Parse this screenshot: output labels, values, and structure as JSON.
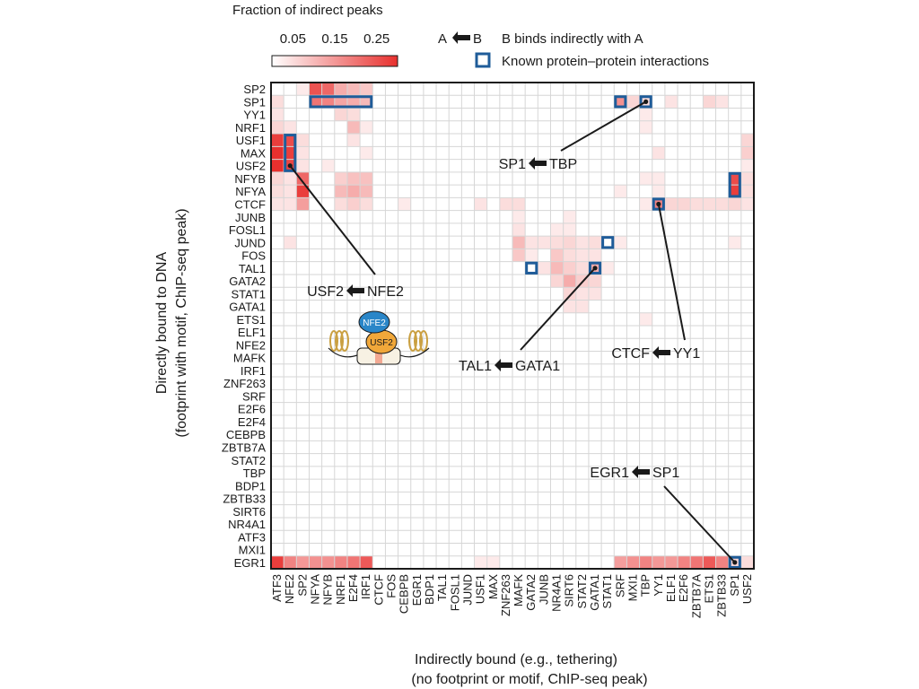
{
  "chart_data": {
    "type": "heatmap",
    "colorbar": {
      "title": "Fraction of indirect peaks",
      "ticks": [
        "0.05",
        "0.15",
        "0.25"
      ],
      "range": [
        0,
        0.3
      ],
      "low_color": "#ffffff",
      "high_color": "#e8302e"
    },
    "legend": {
      "arrow_a": "A",
      "arrow_b": "B",
      "arrow_text": "B binds indirectly with A",
      "box_text": "Known protein–protein interactions",
      "box_color": "#1f5c99"
    },
    "ylabel_line1": "Directly bound to DNA",
    "ylabel_line2": "(footprint with motif, ChIP-seq peak)",
    "xlabel_line1": "Indirectly bound (e.g., tethering)",
    "xlabel_line2": "(no footprint or motif, ChIP-seq peak)",
    "rows": [
      "SP2",
      "SP1",
      "YY1",
      "NRF1",
      "USF1",
      "MAX",
      "USF2",
      "NFYB",
      "NFYA",
      "CTCF",
      "JUNB",
      "FOSL1",
      "JUND",
      "FOS",
      "TAL1",
      "GATA2",
      "STAT1",
      "GATA1",
      "ETS1",
      "ELF1",
      "NFE2",
      "MAFK",
      "IRF1",
      "ZNF263",
      "SRF",
      "E2F6",
      "E2F4",
      "CEBPB",
      "ZBTB7A",
      "STAT2",
      "TBP",
      "BDP1",
      "ZBTB33",
      "SIRT6",
      "NR4A1",
      "ATF3",
      "MXI1",
      "EGR1"
    ],
    "columns": [
      "ATF3",
      "NFE2",
      "SP2",
      "NFYA",
      "NFYB",
      "NRF1",
      "E2F4",
      "IRF1",
      "CTCF",
      "FOS",
      "CEBPB",
      "EGR1",
      "BDP1",
      "TAL1",
      "FOSL1",
      "JUND",
      "USF1",
      "MAX",
      "ZNF263",
      "MAFK",
      "GATA2",
      "JUNB",
      "NR4A1",
      "SIRT6",
      "STAT2",
      "GATA1",
      "STAT1",
      "SRF",
      "MXI1",
      "TBP",
      "YY1",
      "ELF1",
      "E2F6",
      "ZBTB7A",
      "ETS1",
      "ZBTB33",
      "SP1",
      "USF2"
    ],
    "cells": [
      {
        "row": "SP2",
        "col": "NFYA",
        "value": 0.25
      },
      {
        "row": "SP2",
        "col": "NFYB",
        "value": 0.22
      },
      {
        "row": "SP2",
        "col": "NRF1",
        "value": 0.12
      },
      {
        "row": "SP2",
        "col": "E2F4",
        "value": 0.1
      },
      {
        "row": "SP2",
        "col": "IRF1",
        "value": 0.08
      },
      {
        "row": "SP2",
        "col": "SP2",
        "value": 0.03
      },
      {
        "row": "SP1",
        "col": "ATF3",
        "value": 0.05
      },
      {
        "row": "SP1",
        "col": "NFYA",
        "value": 0.2
      },
      {
        "row": "SP1",
        "col": "NFYB",
        "value": 0.18
      },
      {
        "row": "SP1",
        "col": "NRF1",
        "value": 0.13
      },
      {
        "row": "SP1",
        "col": "E2F4",
        "value": 0.12
      },
      {
        "row": "SP1",
        "col": "IRF1",
        "value": 0.1
      },
      {
        "row": "SP1",
        "col": "SRF",
        "value": 0.16
      },
      {
        "row": "SP1",
        "col": "MXI1",
        "value": 0.06
      },
      {
        "row": "SP1",
        "col": "TBP",
        "value": 0.05
      },
      {
        "row": "SP1",
        "col": "ELF1",
        "value": 0.04
      },
      {
        "row": "SP1",
        "col": "ETS1",
        "value": 0.06
      },
      {
        "row": "SP1",
        "col": "ZBTB33",
        "value": 0.04
      },
      {
        "row": "YY1",
        "col": "ATF3",
        "value": 0.04
      },
      {
        "row": "YY1",
        "col": "NRF1",
        "value": 0.06
      },
      {
        "row": "YY1",
        "col": "E2F4",
        "value": 0.05
      },
      {
        "row": "YY1",
        "col": "TBP",
        "value": 0.03
      },
      {
        "row": "NRF1",
        "col": "ATF3",
        "value": 0.06
      },
      {
        "row": "NRF1",
        "col": "NFE2",
        "value": 0.04
      },
      {
        "row": "NRF1",
        "col": "E2F4",
        "value": 0.1
      },
      {
        "row": "NRF1",
        "col": "IRF1",
        "value": 0.03
      },
      {
        "row": "NRF1",
        "col": "TBP",
        "value": 0.03
      },
      {
        "row": "USF1",
        "col": "ATF3",
        "value": 0.28
      },
      {
        "row": "USF1",
        "col": "NFE2",
        "value": 0.26
      },
      {
        "row": "USF1",
        "col": "SP2",
        "value": 0.05
      },
      {
        "row": "USF1",
        "col": "E2F4",
        "value": 0.04
      },
      {
        "row": "USF1",
        "col": "USF2",
        "value": 0.06
      },
      {
        "row": "MAX",
        "col": "ATF3",
        "value": 0.3
      },
      {
        "row": "MAX",
        "col": "NFE2",
        "value": 0.28
      },
      {
        "row": "MAX",
        "col": "SP2",
        "value": 0.04
      },
      {
        "row": "MAX",
        "col": "IRF1",
        "value": 0.03
      },
      {
        "row": "MAX",
        "col": "YY1",
        "value": 0.04
      },
      {
        "row": "MAX",
        "col": "USF2",
        "value": 0.07
      },
      {
        "row": "USF2",
        "col": "ATF3",
        "value": 0.3
      },
      {
        "row": "USF2",
        "col": "NFE2",
        "value": 0.27
      },
      {
        "row": "USF2",
        "col": "SP2",
        "value": 0.04
      },
      {
        "row": "USF2",
        "col": "NFYB",
        "value": 0.03
      },
      {
        "row": "USF2",
        "col": "USF2",
        "value": 0.03
      },
      {
        "row": "NFYB",
        "col": "ATF3",
        "value": 0.06
      },
      {
        "row": "NFYB",
        "col": "NFE2",
        "value": 0.04
      },
      {
        "row": "NFYB",
        "col": "SP2",
        "value": 0.22
      },
      {
        "row": "NFYB",
        "col": "NRF1",
        "value": 0.07
      },
      {
        "row": "NFYB",
        "col": "E2F4",
        "value": 0.09
      },
      {
        "row": "NFYB",
        "col": "IRF1",
        "value": 0.09
      },
      {
        "row": "NFYB",
        "col": "TBP",
        "value": 0.03
      },
      {
        "row": "NFYB",
        "col": "YY1",
        "value": 0.03
      },
      {
        "row": "NFYB",
        "col": "SP1",
        "value": 0.26
      },
      {
        "row": "NFYB",
        "col": "USF2",
        "value": 0.05
      },
      {
        "row": "NFYA",
        "col": "ATF3",
        "value": 0.05
      },
      {
        "row": "NFYA",
        "col": "NFE2",
        "value": 0.04
      },
      {
        "row": "NFYA",
        "col": "SP2",
        "value": 0.28
      },
      {
        "row": "NFYA",
        "col": "NRF1",
        "value": 0.1
      },
      {
        "row": "NFYA",
        "col": "E2F4",
        "value": 0.12
      },
      {
        "row": "NFYA",
        "col": "IRF1",
        "value": 0.1
      },
      {
        "row": "NFYA",
        "col": "SRF",
        "value": 0.03
      },
      {
        "row": "NFYA",
        "col": "YY1",
        "value": 0.03
      },
      {
        "row": "NFYA",
        "col": "SP1",
        "value": 0.28
      },
      {
        "row": "NFYA",
        "col": "USF2",
        "value": 0.05
      },
      {
        "row": "CTCF",
        "col": "ATF3",
        "value": 0.04
      },
      {
        "row": "CTCF",
        "col": "NFE2",
        "value": 0.04
      },
      {
        "row": "CTCF",
        "col": "SP2",
        "value": 0.14
      },
      {
        "row": "CTCF",
        "col": "NRF1",
        "value": 0.05
      },
      {
        "row": "CTCF",
        "col": "E2F4",
        "value": 0.07
      },
      {
        "row": "CTCF",
        "col": "IRF1",
        "value": 0.05
      },
      {
        "row": "CTCF",
        "col": "CEBPB",
        "value": 0.03
      },
      {
        "row": "CTCF",
        "col": "USF1",
        "value": 0.04
      },
      {
        "row": "CTCF",
        "col": "ZNF263",
        "value": 0.05
      },
      {
        "row": "CTCF",
        "col": "MAFK",
        "value": 0.05
      },
      {
        "row": "CTCF",
        "col": "TBP",
        "value": 0.03
      },
      {
        "row": "CTCF",
        "col": "YY1",
        "value": 0.18
      },
      {
        "row": "CTCF",
        "col": "ELF1",
        "value": 0.06
      },
      {
        "row": "CTCF",
        "col": "E2F6",
        "value": 0.06
      },
      {
        "row": "CTCF",
        "col": "ZBTB7A",
        "value": 0.05
      },
      {
        "row": "CTCF",
        "col": "ETS1",
        "value": 0.05
      },
      {
        "row": "CTCF",
        "col": "ZBTB33",
        "value": 0.05
      },
      {
        "row": "CTCF",
        "col": "SP1",
        "value": 0.06
      },
      {
        "row": "CTCF",
        "col": "USF2",
        "value": 0.04
      },
      {
        "row": "JUNB",
        "col": "MAFK",
        "value": 0.03
      },
      {
        "row": "JUNB",
        "col": "SIRT6",
        "value": 0.03
      },
      {
        "row": "FOSL1",
        "col": "MAFK",
        "value": 0.04
      },
      {
        "row": "FOSL1",
        "col": "NR4A1",
        "value": 0.03
      },
      {
        "row": "FOSL1",
        "col": "SIRT6",
        "value": 0.03
      },
      {
        "row": "JUND",
        "col": "NFE2",
        "value": 0.04
      },
      {
        "row": "JUND",
        "col": "MAFK",
        "value": 0.1
      },
      {
        "row": "JUND",
        "col": "GATA2",
        "value": 0.04
      },
      {
        "row": "JUND",
        "col": "JUNB",
        "value": 0.04
      },
      {
        "row": "JUND",
        "col": "NR4A1",
        "value": 0.05
      },
      {
        "row": "JUND",
        "col": "SIRT6",
        "value": 0.06
      },
      {
        "row": "JUND",
        "col": "STAT2",
        "value": 0.04
      },
      {
        "row": "JUND",
        "col": "GATA1",
        "value": 0.05
      },
      {
        "row": "JUND",
        "col": "SRF",
        "value": 0.03
      },
      {
        "row": "JUND",
        "col": "SP1",
        "value": 0.03
      },
      {
        "row": "FOS",
        "col": "MAFK",
        "value": 0.08
      },
      {
        "row": "FOS",
        "col": "GATA2",
        "value": 0.03
      },
      {
        "row": "FOS",
        "col": "NR4A1",
        "value": 0.08
      },
      {
        "row": "FOS",
        "col": "SIRT6",
        "value": 0.05
      },
      {
        "row": "FOS",
        "col": "STAT2",
        "value": 0.04
      },
      {
        "row": "FOS",
        "col": "GATA1",
        "value": 0.04
      },
      {
        "row": "TAL1",
        "col": "JUNB",
        "value": 0.04
      },
      {
        "row": "TAL1",
        "col": "NR4A1",
        "value": 0.1
      },
      {
        "row": "TAL1",
        "col": "SIRT6",
        "value": 0.07
      },
      {
        "row": "TAL1",
        "col": "STAT2",
        "value": 0.05
      },
      {
        "row": "TAL1",
        "col": "GATA1",
        "value": 0.12
      },
      {
        "row": "TAL1",
        "col": "STAT1",
        "value": 0.03
      },
      {
        "row": "GATA2",
        "col": "NR4A1",
        "value": 0.06
      },
      {
        "row": "GATA2",
        "col": "SIRT6",
        "value": 0.12
      },
      {
        "row": "GATA2",
        "col": "STAT2",
        "value": 0.07
      },
      {
        "row": "GATA2",
        "col": "GATA1",
        "value": 0.06
      },
      {
        "row": "STAT1",
        "col": "SIRT6",
        "value": 0.06
      },
      {
        "row": "STAT1",
        "col": "STAT2",
        "value": 0.04
      },
      {
        "row": "STAT1",
        "col": "GATA1",
        "value": 0.04
      },
      {
        "row": "GATA1",
        "col": "SIRT6",
        "value": 0.04
      },
      {
        "row": "GATA1",
        "col": "STAT2",
        "value": 0.04
      },
      {
        "row": "ETS1",
        "col": "TBP",
        "value": 0.03
      },
      {
        "row": "EGR1",
        "col": "ATF3",
        "value": 0.28
      },
      {
        "row": "EGR1",
        "col": "NFE2",
        "value": 0.18
      },
      {
        "row": "EGR1",
        "col": "SP2",
        "value": 0.15
      },
      {
        "row": "EGR1",
        "col": "NFYA",
        "value": 0.16
      },
      {
        "row": "EGR1",
        "col": "NFYB",
        "value": 0.16
      },
      {
        "row": "EGR1",
        "col": "NRF1",
        "value": 0.18
      },
      {
        "row": "EGR1",
        "col": "E2F4",
        "value": 0.2
      },
      {
        "row": "EGR1",
        "col": "IRF1",
        "value": 0.24
      },
      {
        "row": "EGR1",
        "col": "USF1",
        "value": 0.03
      },
      {
        "row": "EGR1",
        "col": "MAX",
        "value": 0.03
      },
      {
        "row": "EGR1",
        "col": "SRF",
        "value": 0.14
      },
      {
        "row": "EGR1",
        "col": "MXI1",
        "value": 0.16
      },
      {
        "row": "EGR1",
        "col": "TBP",
        "value": 0.18
      },
      {
        "row": "EGR1",
        "col": "YY1",
        "value": 0.15
      },
      {
        "row": "EGR1",
        "col": "ELF1",
        "value": 0.15
      },
      {
        "row": "EGR1",
        "col": "E2F6",
        "value": 0.18
      },
      {
        "row": "EGR1",
        "col": "ZBTB7A",
        "value": 0.2
      },
      {
        "row": "EGR1",
        "col": "ETS1",
        "value": 0.24
      },
      {
        "row": "EGR1",
        "col": "ZBTB33",
        "value": 0.18
      },
      {
        "row": "EGR1",
        "col": "SP1",
        "value": 0.06
      },
      {
        "row": "EGR1",
        "col": "USF2",
        "value": 0.05
      }
    ],
    "known_interactions": [
      {
        "row": "SP1",
        "col_start": "NFYA",
        "col_end": "IRF1"
      },
      {
        "row": "SP1",
        "col_start": "SRF",
        "col_end": "SRF"
      },
      {
        "row": "SP1",
        "col_start": "TBP",
        "col_end": "TBP"
      },
      {
        "row": "USF1",
        "row_end": "USF2",
        "col_start": "NFE2",
        "col_end": "NFE2"
      },
      {
        "row": "NFYB",
        "row_end": "NFYA",
        "col_start": "SP1",
        "col_end": "SP1"
      },
      {
        "row": "CTCF",
        "col_start": "YY1",
        "col_end": "YY1"
      },
      {
        "row": "JUND",
        "col_start": "STAT1",
        "col_end": "STAT1"
      },
      {
        "row": "TAL1",
        "col_start": "GATA2",
        "col_end": "GATA2"
      },
      {
        "row": "TAL1",
        "col_start": "GATA1",
        "col_end": "GATA1"
      },
      {
        "row": "EGR1",
        "col_start": "SP1",
        "col_end": "SP1"
      }
    ],
    "annotations": [
      {
        "a": "SP1",
        "b": "TBP",
        "row": "SP1",
        "col": "TBP"
      },
      {
        "a": "USF2",
        "b": "NFE2",
        "row": "USF2",
        "col": "NFE2"
      },
      {
        "a": "TAL1",
        "b": "GATA1",
        "row": "TAL1",
        "col": "GATA1"
      },
      {
        "a": "CTCF",
        "b": "YY1",
        "row": "CTCF",
        "col": "YY1"
      },
      {
        "a": "EGR1",
        "b": "SP1",
        "row": "EGR1",
        "col": "SP1"
      }
    ],
    "inset": {
      "top_label": "NFE2",
      "bottom_label": "USF2"
    }
  }
}
